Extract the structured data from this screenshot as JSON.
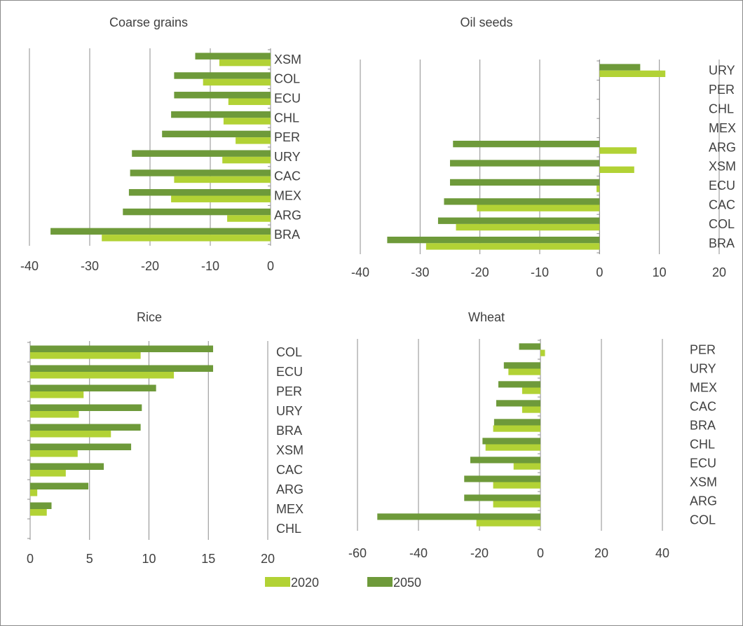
{
  "colors": {
    "s2020": "#b2d235",
    "s2050": "#6e9a3a",
    "grid": "#8c8c8c",
    "text": "#404040"
  },
  "legend": [
    {
      "name": "2020"
    },
    {
      "name": "2050"
    }
  ],
  "chart_data": [
    {
      "type": "bar",
      "orientation": "horizontal",
      "title": "Coarse grains",
      "categories": [
        "XSM",
        "COL",
        "ECU",
        "CHL",
        "PER",
        "URY",
        "CAC",
        "MEX",
        "ARG",
        "BRA"
      ],
      "series": [
        {
          "name": "2020",
          "values": [
            -8.5,
            -11.2,
            -7,
            -7.8,
            -5.8,
            -8,
            -16,
            -16.5,
            -7.2,
            -28
          ]
        },
        {
          "name": "2050",
          "values": [
            -12.5,
            -16,
            -16,
            -16.5,
            -18,
            -23,
            -23.3,
            -23.5,
            -24.5,
            -36.5
          ]
        }
      ],
      "xlim": [
        -40,
        0
      ],
      "xticks": [
        -40,
        -30,
        -20,
        -10,
        0
      ],
      "category_labels_side": "right",
      "grid": true
    },
    {
      "type": "bar",
      "orientation": "horizontal",
      "title": "Oil seeds",
      "categories": [
        "URY",
        "PER",
        "CHL",
        "MEX",
        "ARG",
        "XSM",
        "ECU",
        "CAC",
        "COL",
        "BRA"
      ],
      "series": [
        {
          "name": "2020",
          "values": [
            11,
            0,
            0,
            0,
            6.2,
            5.8,
            -0.5,
            -20.5,
            -24,
            -29
          ]
        },
        {
          "name": "2050",
          "values": [
            6.8,
            0,
            0,
            0,
            -24.5,
            -25,
            -25,
            -26,
            -27,
            -35.5
          ]
        }
      ],
      "xlim": [
        -40,
        20
      ],
      "xticks": [
        -40,
        -30,
        -20,
        -10,
        0,
        10,
        20
      ],
      "category_labels_side": "right",
      "grid": true
    },
    {
      "type": "bar",
      "orientation": "horizontal",
      "title": "Rice",
      "categories": [
        "COL",
        "ECU",
        "PER",
        "URY",
        "BRA",
        "XSM",
        "CAC",
        "ARG",
        "MEX",
        "CHL"
      ],
      "series": [
        {
          "name": "2020",
          "values": [
            9.3,
            12.1,
            4.5,
            4.1,
            6.8,
            4,
            3,
            0.6,
            1.4,
            0
          ]
        },
        {
          "name": "2050",
          "values": [
            15.4,
            15.4,
            10.6,
            9.4,
            9.3,
            8.5,
            6.2,
            4.9,
            1.8,
            0
          ]
        }
      ],
      "xlim": [
        0,
        20
      ],
      "xticks": [
        0,
        5,
        10,
        15,
        20
      ],
      "category_labels_side": "right",
      "grid": true
    },
    {
      "type": "bar",
      "orientation": "horizontal",
      "title": "Wheat",
      "categories": [
        "PER",
        "URY",
        "MEX",
        "CAC",
        "BRA",
        "CHL",
        "ECU",
        "XSM",
        "ARG",
        "COL"
      ],
      "series": [
        {
          "name": "2020",
          "values": [
            1.5,
            -10.5,
            -6,
            -6,
            -15.5,
            -18,
            -8.8,
            -15.5,
            -15.5,
            -21
          ]
        },
        {
          "name": "2050",
          "values": [
            -7,
            -12,
            -13.8,
            -14.5,
            -15.2,
            -19,
            -23,
            -25,
            -25,
            -53.5
          ]
        }
      ],
      "xlim": [
        -60,
        40
      ],
      "xticks": [
        -60,
        -40,
        -20,
        0,
        20,
        40
      ],
      "category_labels_side": "right",
      "grid": true
    }
  ]
}
